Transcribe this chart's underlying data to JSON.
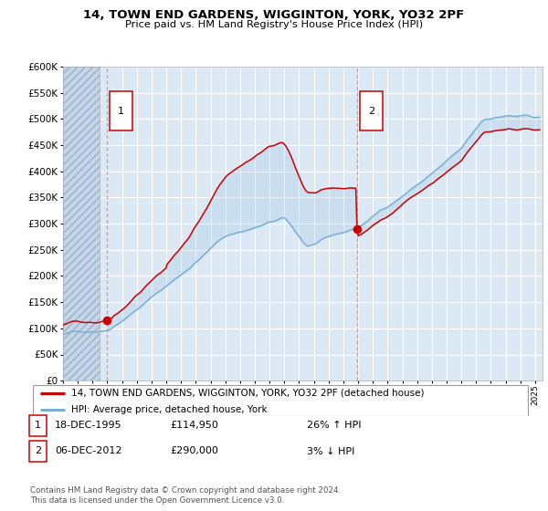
{
  "title1": "14, TOWN END GARDENS, WIGGINTON, YORK, YO32 2PF",
  "title2": "Price paid vs. HM Land Registry's House Price Index (HPI)",
  "legend_line1": "14, TOWN END GARDENS, WIGGINTON, YORK, YO32 2PF (detached house)",
  "legend_line2": "HPI: Average price, detached house, York",
  "footer": "Contains HM Land Registry data © Crown copyright and database right 2024.\nThis data is licensed under the Open Government Licence v3.0.",
  "sale1_date": 1995.96,
  "sale1_price": 114950,
  "sale2_date": 2012.92,
  "sale2_price": 290000,
  "hpi_color": "#7aafd4",
  "price_color": "#cc0000",
  "bg_color": "#dce9f5",
  "grid_color": "#ffffff",
  "vline_color": "#ff7777",
  "ylim": [
    0,
    600000
  ],
  "xlim_start": 1993.0,
  "xlim_end": 2025.5,
  "hatch_end": 1995.5
}
